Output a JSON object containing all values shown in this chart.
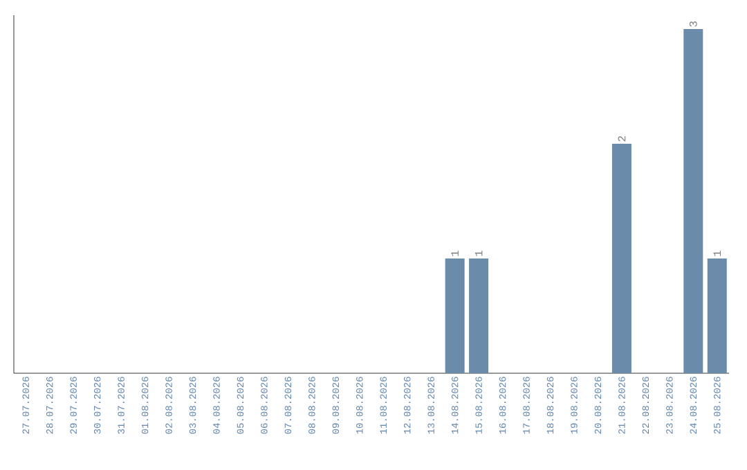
{
  "chart_data": {
    "type": "bar",
    "color": "#6a8caa",
    "categories": [
      "27.07.2026",
      "28.07.2026",
      "29.07.2026",
      "30.07.2026",
      "31.07.2026",
      "01.08.2026",
      "02.08.2026",
      "03.08.2026",
      "04.08.2026",
      "05.08.2026",
      "06.08.2026",
      "07.08.2026",
      "08.08.2026",
      "09.08.2026",
      "10.08.2026",
      "11.08.2026",
      "12.08.2026",
      "13.08.2026",
      "14.08.2026",
      "15.08.2026",
      "16.08.2026",
      "17.08.2026",
      "18.08.2026",
      "19.08.2026",
      "20.08.2026",
      "21.08.2026",
      "22.08.2026",
      "23.08.2026",
      "24.08.2026",
      "25.08.2026"
    ],
    "values": [
      null,
      null,
      null,
      null,
      null,
      null,
      null,
      null,
      null,
      null,
      null,
      null,
      null,
      null,
      null,
      null,
      null,
      null,
      1,
      1,
      null,
      null,
      null,
      null,
      null,
      2,
      null,
      null,
      3,
      1
    ],
    "data_labels": true,
    "grid": false
  }
}
